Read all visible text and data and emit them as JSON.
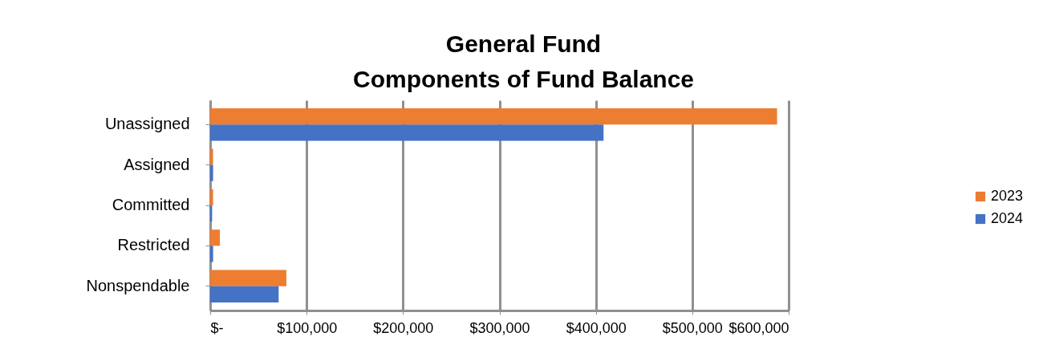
{
  "chart_data": {
    "type": "bar",
    "orientation": "horizontal",
    "title": "General Fund\nComponents of Fund Balance",
    "categories": [
      "Unassigned",
      "Assigned",
      "Committed",
      "Restricted",
      "Nonspendable"
    ],
    "series": [
      {
        "name": "2023",
        "color": "#ed7d31",
        "values": [
          588000,
          3000,
          3000,
          10000,
          79000
        ]
      },
      {
        "name": "2024",
        "color": "#4472c4",
        "values": [
          408000,
          3000,
          2000,
          3000,
          71000
        ]
      }
    ],
    "xlim": [
      0,
      600000
    ],
    "xticks": [
      {
        "value": 0,
        "label": "$-"
      },
      {
        "value": 100000,
        "label": "$100,000"
      },
      {
        "value": 200000,
        "label": "$200,000"
      },
      {
        "value": 300000,
        "label": "$300,000"
      },
      {
        "value": 400000,
        "label": "$400,000"
      },
      {
        "value": 500000,
        "label": "$500,000"
      },
      {
        "value": 600000,
        "label": "$600,000"
      }
    ],
    "grid": "x",
    "legend": "right"
  }
}
